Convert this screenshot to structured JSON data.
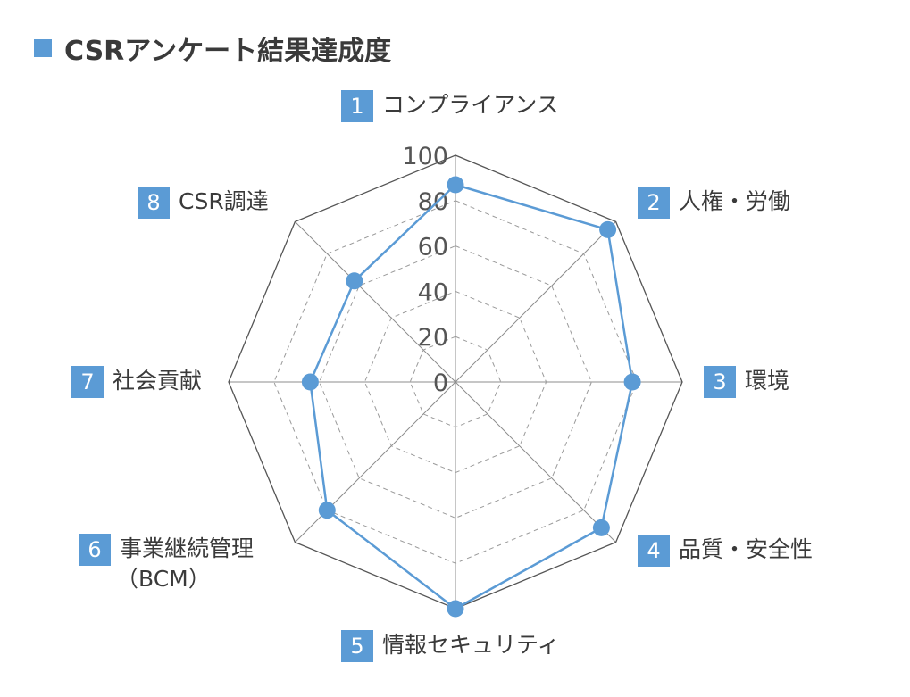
{
  "title": "CSRアンケート結果達成度",
  "colors": {
    "accent": "#5b9bd5",
    "grid": "#999999",
    "text": "#3c3c3c"
  },
  "chart_data": {
    "type": "radar",
    "title": "CSRアンケート結果達成度",
    "rmin": 0,
    "rmax": 100,
    "rticks": [
      "0",
      "20",
      "40",
      "60",
      "80",
      "100"
    ],
    "categories": [
      {
        "num": "1",
        "label": "コンプライアンス"
      },
      {
        "num": "2",
        "label": "人権・労働"
      },
      {
        "num": "3",
        "label": "環境"
      },
      {
        "num": "4",
        "label": "品質・安全性"
      },
      {
        "num": "5",
        "label": "情報セキュリティ"
      },
      {
        "num": "6",
        "label": "事業継続管理",
        "label2": "（BCM）"
      },
      {
        "num": "7",
        "label": "社会貢献"
      },
      {
        "num": "8",
        "label": "CSR調達"
      }
    ],
    "series": [
      {
        "values": [
          87,
          95,
          78,
          91,
          100,
          80,
          64,
          63
        ]
      }
    ]
  }
}
